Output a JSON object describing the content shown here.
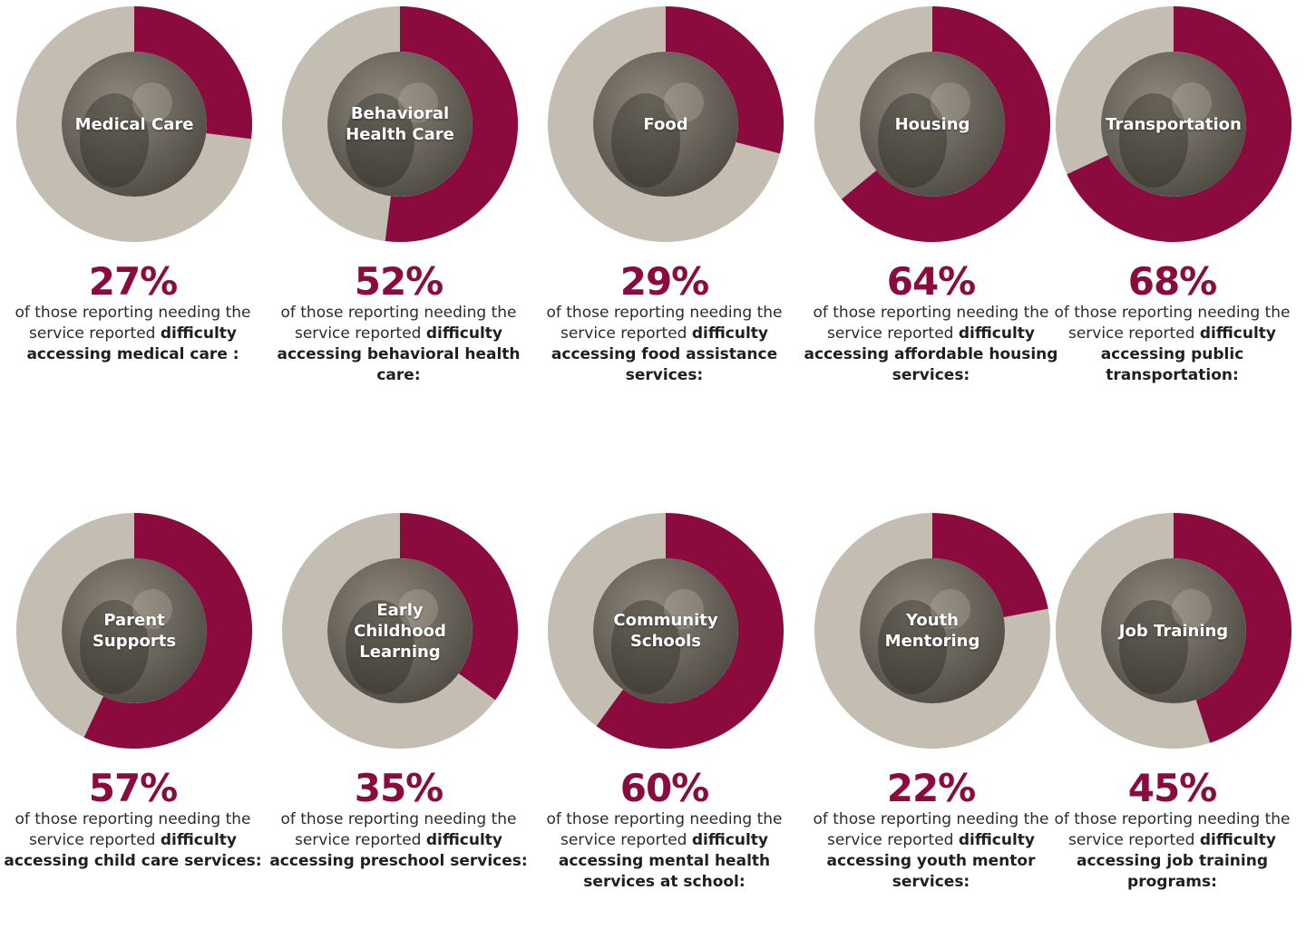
{
  "colors": {
    "accent": "#8b0b3f",
    "track": "#c3bdb2",
    "photo_dark": "#4a463f",
    "photo_light": "#8e887c"
  },
  "chart_data": {
    "type": "pie",
    "categories": [
      "Medical Care",
      "Behavioral Health Care",
      "Food",
      "Housing",
      "Transportation",
      "Parent Supports",
      "Early Childhood Learning",
      "Community Schools",
      "Youth Mentoring",
      "Job Training"
    ],
    "values": [
      27,
      52,
      29,
      64,
      68,
      57,
      35,
      60,
      22,
      45
    ],
    "unit": "%"
  },
  "cards": [
    {
      "label": "Medical Care",
      "value": 27,
      "pct_text": "27%",
      "plain": "of those reporting needing the service reported ",
      "bold_start": "difficulty",
      "bold_rest": " accessing medical care :"
    },
    {
      "label": "Behavioral\nHealth Care",
      "value": 52,
      "pct_text": "52%",
      "plain": "of those reporting needing the service reported ",
      "bold_start": "difficulty",
      "bold_rest": " accessing behavioral health care:"
    },
    {
      "label": "Food",
      "value": 29,
      "pct_text": "29%",
      "plain": "of those reporting needing the service reported ",
      "bold_start": "difficulty",
      "bold_rest": " accessing food assistance services:"
    },
    {
      "label": "Housing",
      "value": 64,
      "pct_text": "64%",
      "plain": "of those reporting needing the service reported ",
      "bold_start": "difficulty",
      "bold_rest": " accessing affordable housing services:"
    },
    {
      "label": "Transportation",
      "value": 68,
      "pct_text": "68%",
      "plain": "of those reporting needing the service reported ",
      "bold_start": "difficulty",
      "bold_rest": " accessing public transportation:"
    },
    {
      "label": "Parent\nSupports",
      "value": 57,
      "pct_text": "57%",
      "plain": "of those reporting needing the service reported ",
      "bold_start": "difficulty",
      "bold_rest": " accessing child care services:"
    },
    {
      "label": "Early\nChildhood\nLearning",
      "value": 35,
      "pct_text": "35%",
      "plain": "of those reporting needing the service reported ",
      "bold_start": "difficulty",
      "bold_rest": " accessing preschool services:"
    },
    {
      "label": "Community\nSchools",
      "value": 60,
      "pct_text": "60%",
      "plain": "of those reporting needing the service reported ",
      "bold_start": "difficulty",
      "bold_rest": " accessing mental health services at school:"
    },
    {
      "label": "Youth\nMentoring",
      "value": 22,
      "pct_text": "22%",
      "plain": "of those reporting needing the service reported ",
      "bold_start": "difficulty",
      "bold_rest": " accessing youth mentor services:"
    },
    {
      "label": "Job Training",
      "value": 45,
      "pct_text": "45%",
      "plain": "of those reporting needing the service reported ",
      "bold_start": "difficulty",
      "bold_rest": " accessing job training programs:"
    }
  ]
}
